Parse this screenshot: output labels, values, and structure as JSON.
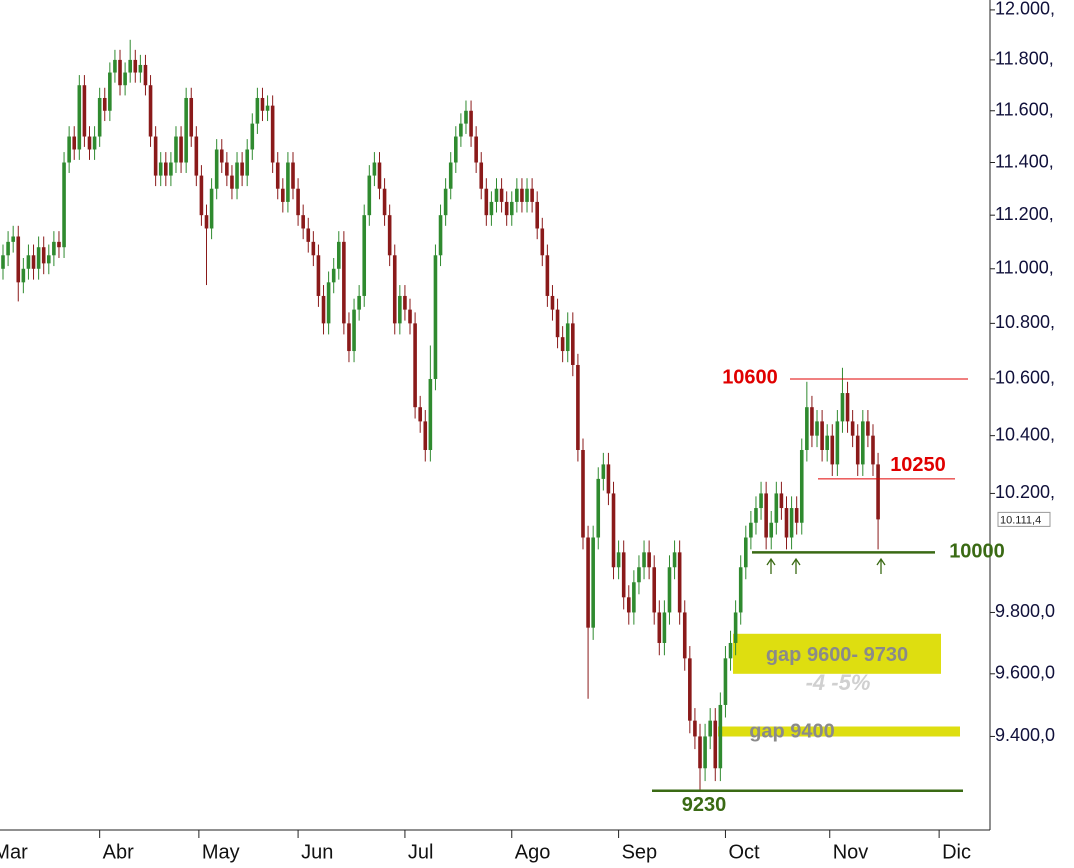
{
  "chart_data": {
    "type": "candlestick",
    "open": [
      11000,
      11050,
      11100,
      11120,
      10950,
      11000,
      11050,
      11000,
      11080,
      11020,
      11050,
      11100,
      11080,
      11400,
      11500,
      11450,
      11700,
      11500,
      11450,
      11500,
      11650,
      11600,
      11750,
      11800,
      11700,
      11750,
      11800,
      11750,
      11780,
      11700,
      11500,
      11350,
      11400,
      11350,
      11400,
      11500,
      11400,
      11650,
      11500,
      11350,
      11200,
      11150,
      11300,
      11450,
      11400,
      11350,
      11300,
      11400,
      11350,
      11450,
      11550,
      11650,
      11600,
      11620,
      11400,
      11300,
      11250,
      11400,
      11300,
      11200,
      11150,
      11100,
      11050,
      10900,
      10800,
      10950,
      11000,
      11100,
      10800,
      10700,
      10850,
      10900,
      11200,
      11350,
      11400,
      11300,
      11200,
      11050,
      10800,
      10900,
      10850,
      10800,
      10500,
      10450,
      10350,
      10600,
      11050,
      11200,
      11300,
      11400,
      11500,
      11550,
      11600,
      11500,
      11400,
      11300,
      11200,
      11250,
      11300,
      11250,
      11200,
      11250,
      11300,
      11250,
      11300,
      11250,
      11150,
      11050,
      10900,
      10850,
      10750,
      10700,
      10800,
      10650,
      10350,
      10050,
      9750,
      10050,
      10250,
      10300,
      10200,
      9950,
      10000,
      9850,
      9800,
      9900,
      9950,
      10000,
      9950,
      9800,
      9700,
      9800,
      9950,
      10000,
      9800,
      9650,
      9450,
      9400,
      9300,
      9400,
      9450,
      9300,
      9500,
      9650,
      9700,
      9800,
      9950,
      10050,
      10100,
      10150,
      10200,
      10050,
      10100,
      10200,
      10150,
      10050,
      10150,
      10100,
      10350,
      10500,
      10400,
      10450,
      10350,
      10400,
      10300,
      10450,
      10550,
      10450,
      10400,
      10300,
      10450,
      10400,
      10300
    ],
    "high": [
      11090,
      11140,
      11160,
      11160,
      11040,
      11090,
      11090,
      11120,
      11120,
      11090,
      11140,
      11140,
      11440,
      11540,
      11540,
      11740,
      11740,
      11540,
      11540,
      11690,
      11690,
      11790,
      11840,
      11840,
      11790,
      11880,
      11840,
      11820,
      11820,
      11740,
      11540,
      11440,
      11440,
      11440,
      11540,
      11540,
      11690,
      11690,
      11540,
      11390,
      11240,
      11340,
      11490,
      11490,
      11440,
      11390,
      11440,
      11440,
      11490,
      11590,
      11690,
      11690,
      11660,
      11660,
      11440,
      11340,
      11440,
      11440,
      11340,
      11240,
      11190,
      11140,
      11090,
      10940,
      10990,
      11040,
      11140,
      11140,
      10840,
      10890,
      10940,
      11240,
      11390,
      11440,
      11440,
      11340,
      11240,
      11090,
      10940,
      10940,
      10890,
      10840,
      10540,
      10490,
      10720,
      11090,
      11240,
      11340,
      11440,
      11540,
      11590,
      11640,
      11640,
      11540,
      11440,
      11340,
      11290,
      11340,
      11340,
      11290,
      11290,
      11340,
      11340,
      11340,
      11340,
      11290,
      11190,
      11090,
      10940,
      10890,
      10790,
      10840,
      10840,
      10690,
      10390,
      10090,
      10090,
      10290,
      10340,
      10340,
      10240,
      10040,
      10040,
      9890,
      9940,
      9990,
      10040,
      10040,
      9990,
      9840,
      9840,
      9990,
      10040,
      10040,
      9840,
      9690,
      9490,
      9440,
      9440,
      9490,
      9490,
      9540,
      9690,
      9740,
      9840,
      9990,
      10090,
      10140,
      10190,
      10240,
      10240,
      10140,
      10240,
      10240,
      10190,
      10190,
      10190,
      10390,
      10590,
      10540,
      10490,
      10490,
      10440,
      10440,
      10490,
      10640,
      10590,
      10490,
      10440,
      10490,
      10490,
      10440,
      10340
    ],
    "low": [
      10960,
      11010,
      11060,
      10880,
      10910,
      10960,
      10960,
      10960,
      10980,
      10980,
      11010,
      11040,
      11040,
      11360,
      11410,
      11410,
      11460,
      11410,
      11410,
      11460,
      11560,
      11560,
      11710,
      11660,
      11660,
      11710,
      11710,
      11710,
      11660,
      11460,
      11310,
      11310,
      11310,
      11310,
      11360,
      11360,
      11360,
      11460,
      11310,
      11160,
      10940,
      11110,
      11260,
      11360,
      11310,
      11260,
      11260,
      11310,
      11310,
      11410,
      11510,
      11560,
      11560,
      11360,
      11260,
      11210,
      11210,
      11260,
      11160,
      11110,
      11060,
      11010,
      10860,
      10760,
      10760,
      10910,
      10960,
      10760,
      10660,
      10660,
      10810,
      10860,
      11160,
      11310,
      11260,
      11160,
      11010,
      10760,
      10760,
      10810,
      10760,
      10460,
      10410,
      10310,
      10310,
      10560,
      11010,
      11160,
      11260,
      11360,
      11460,
      11510,
      11460,
      11360,
      11260,
      11160,
      11160,
      11210,
      11210,
      11160,
      11160,
      11210,
      11210,
      11210,
      11210,
      11110,
      11010,
      10860,
      10810,
      10710,
      10660,
      10660,
      10610,
      10310,
      10010,
      9520,
      9710,
      10010,
      10210,
      10160,
      9910,
      9910,
      9810,
      9760,
      9760,
      9860,
      9910,
      9910,
      9760,
      9660,
      9660,
      9760,
      9910,
      9760,
      9610,
      9410,
      9360,
      9230,
      9260,
      9360,
      9260,
      9260,
      9460,
      9610,
      9660,
      9760,
      9910,
      10010,
      10060,
      10110,
      10010,
      10010,
      10060,
      10110,
      10010,
      10010,
      10060,
      10060,
      10310,
      10360,
      10360,
      10310,
      10310,
      10260,
      10260,
      10410,
      10410,
      10360,
      10260,
      10260,
      10360,
      10260,
      10010
    ],
    "close": [
      11050,
      11100,
      11120,
      10950,
      11000,
      11050,
      11000,
      11080,
      11020,
      11050,
      11100,
      11080,
      11400,
      11500,
      11450,
      11700,
      11500,
      11450,
      11500,
      11650,
      11600,
      11750,
      11800,
      11700,
      11750,
      11800,
      11750,
      11780,
      11700,
      11500,
      11350,
      11400,
      11350,
      11400,
      11500,
      11400,
      11650,
      11500,
      11350,
      11200,
      11150,
      11300,
      11450,
      11400,
      11350,
      11300,
      11400,
      11350,
      11450,
      11550,
      11650,
      11600,
      11620,
      11400,
      11300,
      11250,
      11400,
      11300,
      11200,
      11150,
      11100,
      11050,
      10900,
      10800,
      10950,
      11000,
      11100,
      10800,
      10700,
      10850,
      10900,
      11200,
      11350,
      11400,
      11300,
      11200,
      11050,
      10800,
      10900,
      10850,
      10800,
      10500,
      10450,
      10350,
      10600,
      11050,
      11200,
      11300,
      11400,
      11500,
      11550,
      11600,
      11500,
      11400,
      11300,
      11200,
      11250,
      11300,
      11250,
      11200,
      11250,
      11300,
      11250,
      11300,
      11250,
      11150,
      11050,
      10900,
      10850,
      10750,
      10700,
      10800,
      10650,
      10350,
      10050,
      9750,
      10050,
      10250,
      10300,
      10200,
      9950,
      10000,
      9850,
      9800,
      9900,
      9950,
      10000,
      9950,
      9800,
      9700,
      9800,
      9950,
      10000,
      9800,
      9650,
      9450,
      9400,
      9300,
      9400,
      9450,
      9300,
      9500,
      9650,
      9700,
      9800,
      9950,
      10050,
      10100,
      10150,
      10200,
      10050,
      10100,
      10200,
      10150,
      10050,
      10150,
      10100,
      10350,
      10500,
      10400,
      10450,
      10350,
      10400,
      10300,
      10450,
      10550,
      10450,
      10400,
      10300,
      10450,
      10400,
      10300,
      10111.4
    ],
    "up_color": "#2f8a2f",
    "down_color": "#8a1a1a",
    "xlim": [
      -0.59,
      194.0
    ],
    "xticks": [
      {
        "value": -2.5,
        "label": "Mar"
      },
      {
        "value": 19,
        "label": "Abr"
      },
      {
        "value": 38.5,
        "label": "May"
      },
      {
        "value": 58,
        "label": "Jun"
      },
      {
        "value": 79,
        "label": "Jul"
      },
      {
        "value": 100,
        "label": "Ago"
      },
      {
        "value": 121,
        "label": "Sep"
      },
      {
        "value": 142,
        "label": "Oct"
      },
      {
        "value": 162.5,
        "label": "Nov"
      },
      {
        "value": 184,
        "label": "Dic"
      }
    ],
    "ylim": [
      9109,
      12040
    ],
    "log_y": true,
    "yticks": [
      {
        "value": 9400,
        "label": "9.400,0"
      },
      {
        "value": 9600,
        "label": "9.600,0"
      },
      {
        "value": 9800,
        "label": "9.800,0"
      },
      {
        "value": 10200,
        "label": "10.200,"
      },
      {
        "value": 10400,
        "label": "10.400,"
      },
      {
        "value": 10600,
        "label": "10.600,"
      },
      {
        "value": 10800,
        "label": "10.800,"
      },
      {
        "value": 11000,
        "label": "11.000,"
      },
      {
        "value": 11200,
        "label": "11.200,"
      },
      {
        "value": 11400,
        "label": "11.400,"
      },
      {
        "value": 11600,
        "label": "11.600,"
      },
      {
        "value": 11800,
        "label": "11.800,"
      },
      {
        "value": 12000,
        "label": "12.000,"
      }
    ],
    "levels": [
      {
        "value": 10600,
        "label": "10600",
        "color": "#e00000"
      },
      {
        "value": 10250,
        "label": "10250",
        "color": "#e00000"
      },
      {
        "value": 10000,
        "label": "10000",
        "color": "#3a6a14"
      },
      {
        "value": 9230,
        "label": "9230",
        "color": "#3a6a14"
      }
    ],
    "zones": [
      {
        "low": 9600,
        "high": 9730,
        "label": "gap 9600- 9730",
        "color": "#dede10"
      }
    ],
    "bands": [
      {
        "value": 9400,
        "label": "gap 9400",
        "color": "#dede10"
      }
    ],
    "annotation": "-4 -5%",
    "price_marker": {
      "value": 10111.4,
      "label": "10.111,4"
    }
  }
}
